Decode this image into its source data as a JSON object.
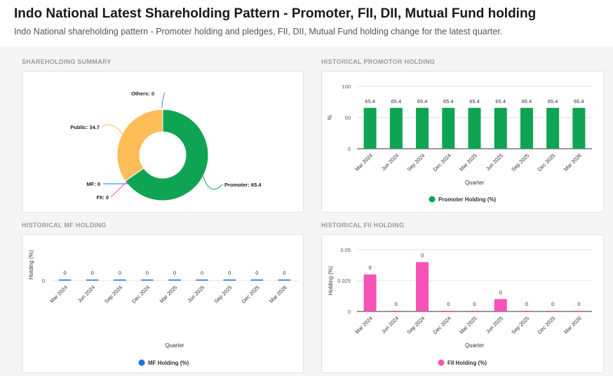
{
  "page": {
    "title": "Indo National Latest Shareholding Pattern - Promoter, FII, DII, Mutual Fund holding",
    "subtitle": "Indo National shareholding pattern - Promoter holding and pledges, FII, DII, Mutual Fund holding change for the latest quarter."
  },
  "sections": {
    "summary": "SHAREHOLDING SUMMARY",
    "promoter": "HISTORICAL PROMOTOR HOLDING",
    "mf": "HISTORICAL MF HOLDING",
    "fii": "HISTORICAL FII HOLDING"
  },
  "colors": {
    "promoter": "#0fa453",
    "public": "#fdbd57",
    "mf": "#1a73e8",
    "fii": "#f752b6",
    "others": "#4b7bd6"
  },
  "chart_data": [
    {
      "id": "summary",
      "type": "pie",
      "donut": true,
      "slices": [
        {
          "label": "Promoter: 65.4",
          "value": 65.4,
          "color": "#0fa453"
        },
        {
          "label": "Public: 34.7",
          "value": 34.7,
          "color": "#fdbd57"
        },
        {
          "label": "Others: 0",
          "value": 0,
          "color": "#4b7bd6"
        },
        {
          "label": "MF: 0",
          "value": 0,
          "color": "#1a73e8"
        },
        {
          "label": "FII: 0",
          "value": 0,
          "color": "#f752b6"
        }
      ]
    },
    {
      "id": "promoter",
      "type": "bar",
      "categories": [
        "Mar 2024",
        "Jun 2024",
        "Sep 2024",
        "Dec 2024",
        "Mar 2025",
        "Jun 2025",
        "Sep 2025",
        "Dec 2025",
        "Mar 2026"
      ],
      "values": [
        65.4,
        65.4,
        65.4,
        65.4,
        65.4,
        65.4,
        65.4,
        65.4,
        65.4
      ],
      "data_labels": [
        "65.4",
        "65.4",
        "65.4",
        "65.4",
        "65.4",
        "65.4",
        "65.4",
        "65.4",
        "65.4"
      ],
      "xlabel": "Quarter",
      "ylabel": "%",
      "ylim": [
        0,
        100
      ],
      "yticks": [
        "0",
        "50",
        "100"
      ],
      "legend": "Promoter Holding (%)",
      "color": "#0fa453"
    },
    {
      "id": "mf",
      "type": "bar",
      "categories": [
        "Mar 2024",
        "Jun 2024",
        "Sep 2024",
        "Dec 2024",
        "Mar 2025",
        "Jun 2025",
        "Sep 2025",
        "Dec 2025",
        "Mar 2026"
      ],
      "values": [
        0,
        0,
        0,
        0,
        0,
        0,
        0,
        0,
        0
      ],
      "data_labels": [
        "0",
        "0",
        "0",
        "0",
        "0",
        "0",
        "0",
        "0",
        "0"
      ],
      "xlabel": "Quarter",
      "ylabel": "Holding (%)",
      "yticks": [
        "0"
      ],
      "legend": "MF Holding (%)",
      "color": "#1a73e8"
    },
    {
      "id": "fii",
      "type": "bar",
      "categories": [
        "Mar 2024",
        "Jun 2024",
        "Sep 2024",
        "Dec 2024",
        "Mar 2025",
        "Jun 2025",
        "Sep 2025",
        "Dec 2025",
        "Mar 2026"
      ],
      "values": [
        0.03,
        0,
        0.04,
        0,
        0,
        0.01,
        0,
        0,
        0
      ],
      "data_labels": [
        "0",
        "0",
        "0",
        "0",
        "0",
        "0",
        "0",
        "0",
        "0"
      ],
      "xlabel": "Quarter",
      "ylabel": "Holding (%)",
      "ylim": [
        0,
        0.05
      ],
      "yticks": [
        "0",
        "0.025",
        "0.05"
      ],
      "legend": "FII Holding (%)",
      "color": "#f752b6"
    }
  ]
}
